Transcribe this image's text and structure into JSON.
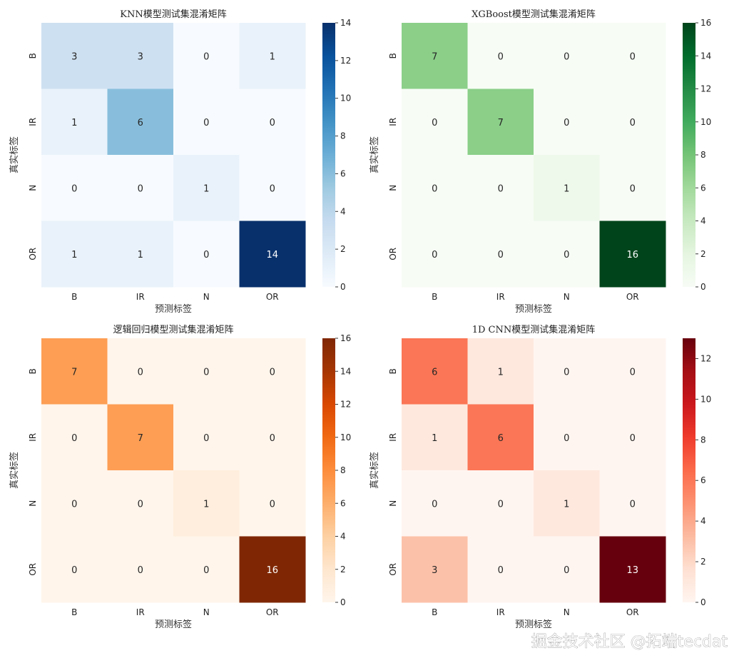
{
  "watermark": "掘金技术社区 @拓端tecdat",
  "chart_data": [
    {
      "type": "heatmap",
      "title": "KNN模型测试集混淆矩阵",
      "xlabel": "预测标签",
      "ylabel": "真实标签",
      "x_categories": [
        "B",
        "IR",
        "N",
        "OR"
      ],
      "y_categories": [
        "B",
        "IR",
        "N",
        "OR"
      ],
      "values": [
        [
          3,
          3,
          0,
          1
        ],
        [
          1,
          6,
          0,
          0
        ],
        [
          0,
          0,
          1,
          0
        ],
        [
          1,
          1,
          0,
          14
        ]
      ],
      "colormap": "Blues",
      "colorbar": {
        "range": [
          0,
          14
        ],
        "ticks": [
          0,
          2,
          4,
          6,
          8,
          10,
          12,
          14
        ]
      }
    },
    {
      "type": "heatmap",
      "title": "XGBoost模型测试集混淆矩阵",
      "xlabel": "预测标签",
      "ylabel": "真实标签",
      "x_categories": [
        "B",
        "IR",
        "N",
        "OR"
      ],
      "y_categories": [
        "B",
        "IR",
        "N",
        "OR"
      ],
      "values": [
        [
          7,
          0,
          0,
          0
        ],
        [
          0,
          7,
          0,
          0
        ],
        [
          0,
          0,
          1,
          0
        ],
        [
          0,
          0,
          0,
          16
        ]
      ],
      "colormap": "Greens",
      "colorbar": {
        "range": [
          0,
          16
        ],
        "ticks": [
          0,
          2,
          4,
          6,
          8,
          10,
          12,
          14,
          16
        ]
      }
    },
    {
      "type": "heatmap",
      "title": "逻辑回归模型测试集混淆矩阵",
      "xlabel": "预测标签",
      "ylabel": "真实标签",
      "x_categories": [
        "B",
        "IR",
        "N",
        "OR"
      ],
      "y_categories": [
        "B",
        "IR",
        "N",
        "OR"
      ],
      "values": [
        [
          7,
          0,
          0,
          0
        ],
        [
          0,
          7,
          0,
          0
        ],
        [
          0,
          0,
          1,
          0
        ],
        [
          0,
          0,
          0,
          16
        ]
      ],
      "colormap": "Oranges",
      "colorbar": {
        "range": [
          0,
          16
        ],
        "ticks": [
          0,
          2,
          4,
          6,
          8,
          10,
          12,
          14,
          16
        ]
      }
    },
    {
      "type": "heatmap",
      "title": "1D CNN模型测试集混淆矩阵",
      "xlabel": "预测标签",
      "ylabel": "真实标签",
      "x_categories": [
        "B",
        "IR",
        "N",
        "OR"
      ],
      "y_categories": [
        "B",
        "IR",
        "N",
        "OR"
      ],
      "values": [
        [
          6,
          1,
          0,
          0
        ],
        [
          1,
          6,
          0,
          0
        ],
        [
          0,
          0,
          1,
          0
        ],
        [
          3,
          0,
          0,
          13
        ]
      ],
      "colormap": "Reds",
      "colorbar": {
        "range": [
          0,
          13
        ],
        "ticks": [
          0,
          2,
          4,
          6,
          8,
          10,
          12
        ]
      }
    }
  ],
  "colormaps": {
    "Blues": [
      "#f7fbff",
      "#deebf7",
      "#c6dbef",
      "#9ecae1",
      "#6baed6",
      "#4292c6",
      "#2171b5",
      "#08519c",
      "#08306b"
    ],
    "Greens": [
      "#f7fcf5",
      "#e5f5e0",
      "#c7e9c0",
      "#a1d99b",
      "#74c476",
      "#41ab5d",
      "#238b45",
      "#006d2c",
      "#00441b"
    ],
    "Oranges": [
      "#fff5eb",
      "#fee6ce",
      "#fdd0a2",
      "#fdae6b",
      "#fd8d3c",
      "#f16913",
      "#d94801",
      "#a63603",
      "#7f2704"
    ],
    "Reds": [
      "#fff5f0",
      "#fee0d2",
      "#fcbba1",
      "#fc9272",
      "#fb6a4a",
      "#ef3b2c",
      "#cb181d",
      "#a50f15",
      "#67000d"
    ]
  }
}
